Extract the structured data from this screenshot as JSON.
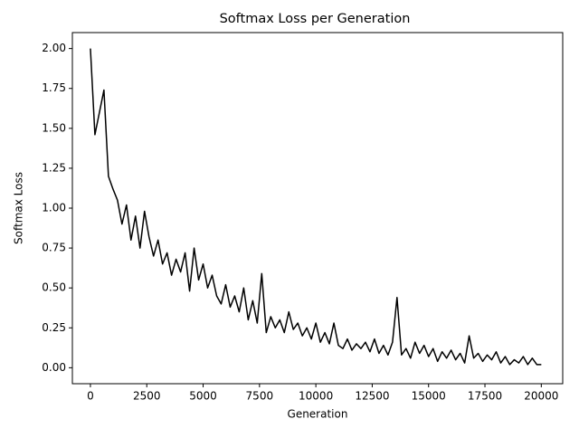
{
  "chart_data": {
    "type": "line",
    "title": "Softmax Loss per Generation",
    "x_label": "Generation",
    "y_label": "Softmax Loss",
    "grid": false,
    "x": [
      0,
      200,
      400,
      600,
      800,
      1000,
      1200,
      1400,
      1600,
      1800,
      2000,
      2200,
      2400,
      2600,
      2800,
      3000,
      3200,
      3400,
      3600,
      3800,
      4000,
      4200,
      4400,
      4600,
      4800,
      5000,
      5200,
      5400,
      5600,
      5800,
      6000,
      6200,
      6400,
      6600,
      6800,
      7000,
      7200,
      7400,
      7600,
      7800,
      8000,
      8200,
      8400,
      8600,
      8800,
      9000,
      9200,
      9400,
      9600,
      9800,
      10000,
      10200,
      10400,
      10600,
      10800,
      11000,
      11200,
      11400,
      11600,
      11800,
      12000,
      12200,
      12400,
      12600,
      12800,
      13000,
      13200,
      13400,
      13600,
      13800,
      14000,
      14200,
      14400,
      14600,
      14800,
      15000,
      15200,
      15400,
      15600,
      15800,
      16000,
      16200,
      16400,
      16600,
      16800,
      17000,
      17200,
      17400,
      17600,
      17800,
      18000,
      18200,
      18400,
      18600,
      18800,
      19000,
      19200,
      19400,
      19600,
      19800,
      20000
    ],
    "series": [
      {
        "color": "#000000",
        "values": [
          2.0,
          1.46,
          1.6,
          1.74,
          1.2,
          1.12,
          1.05,
          0.9,
          1.02,
          0.8,
          0.95,
          0.75,
          0.98,
          0.82,
          0.7,
          0.8,
          0.65,
          0.72,
          0.58,
          0.68,
          0.6,
          0.72,
          0.48,
          0.75,
          0.55,
          0.65,
          0.5,
          0.58,
          0.45,
          0.4,
          0.52,
          0.38,
          0.45,
          0.35,
          0.5,
          0.3,
          0.42,
          0.28,
          0.59,
          0.22,
          0.32,
          0.25,
          0.3,
          0.22,
          0.35,
          0.24,
          0.28,
          0.2,
          0.25,
          0.18,
          0.28,
          0.16,
          0.22,
          0.15,
          0.28,
          0.14,
          0.12,
          0.18,
          0.11,
          0.15,
          0.12,
          0.16,
          0.1,
          0.18,
          0.09,
          0.14,
          0.08,
          0.16,
          0.44,
          0.08,
          0.12,
          0.06,
          0.16,
          0.09,
          0.14,
          0.07,
          0.12,
          0.04,
          0.1,
          0.06,
          0.11,
          0.05,
          0.09,
          0.03,
          0.2,
          0.06,
          0.09,
          0.04,
          0.08,
          0.05,
          0.1,
          0.03,
          0.07,
          0.02,
          0.05,
          0.03,
          0.07,
          0.02,
          0.06,
          0.02,
          0.02
        ]
      }
    ],
    "xlim": [
      -800,
      20950
    ],
    "ylim": [
      -0.1,
      2.1
    ],
    "xticks": [
      0,
      2500,
      5000,
      7500,
      10000,
      12500,
      15000,
      17500,
      20000
    ],
    "yticks": [
      {
        "value": 0,
        "label": "0.00"
      },
      {
        "value": 0.25,
        "label": "0.25"
      },
      {
        "value": 0.5,
        "label": "0.50"
      },
      {
        "value": 0.75,
        "label": "0.75"
      },
      {
        "value": 1,
        "label": "1.00"
      },
      {
        "value": 1.25,
        "label": "1.25"
      },
      {
        "value": 1.5,
        "label": "1.50"
      },
      {
        "value": 1.75,
        "label": "1.75"
      },
      {
        "value": 2,
        "label": "2.00"
      }
    ]
  }
}
